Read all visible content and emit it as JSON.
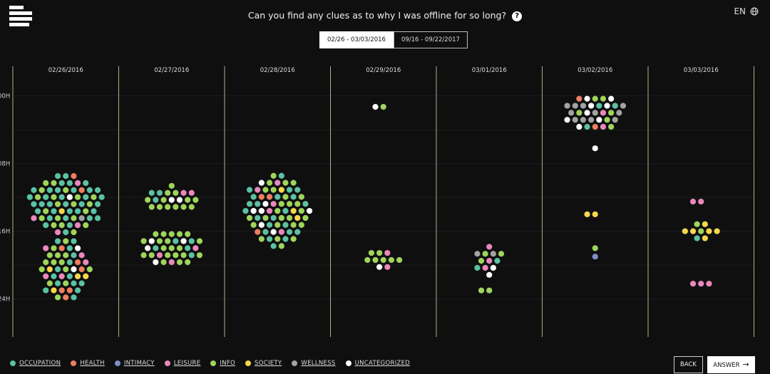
{
  "header": {
    "question": "Can you find any clues as to why I was offline for so long?",
    "help_icon": "?",
    "language": "EN"
  },
  "tabs": [
    {
      "label": "02/26 - 03/03/2016",
      "active": true
    },
    {
      "label": "09/16 - 09/22/2017",
      "active": false
    }
  ],
  "legend": [
    {
      "label": "OCCUPATION",
      "color": "#5bc2a4"
    },
    {
      "label": "HEALTH",
      "color": "#ee7f5f"
    },
    {
      "label": "INTIMACY",
      "color": "#7f8ec8"
    },
    {
      "label": "LEISURE",
      "color": "#ea88bd"
    },
    {
      "label": "INFO",
      "color": "#9fd55a"
    },
    {
      "label": "SOCIETY",
      "color": "#f7d64c"
    },
    {
      "label": "WELLNESS",
      "color": "#a3a3a3"
    },
    {
      "label": "UNCATEGORIZED",
      "color": "#ffffff"
    }
  ],
  "buttons": {
    "back": "BACK",
    "answer": "ANSWER"
  },
  "chart_data": {
    "type": "scatter",
    "x_categories": [
      "02/26/2016",
      "02/27/2016",
      "02/28/2016",
      "02/29/2016",
      "03/01/2016",
      "03/02/2016",
      "03/03/2016"
    ],
    "y_ticks": [
      "00H",
      "08H",
      "16H",
      "24H"
    ],
    "y_tick_values": [
      0,
      8,
      16,
      24
    ],
    "ylim": [
      -3.5,
      28.5
    ],
    "grid": true,
    "legend_position": "bottom-left",
    "clusters": [
      {
        "day": 0,
        "hour": 12.8,
        "cols": 9,
        "rows": 8,
        "counts": {
          "occupation": 34,
          "health": 2,
          "leisure": 4,
          "info": 20,
          "society": 1,
          "wellness": 1,
          "uncategorized": 1
        }
      },
      {
        "day": 0,
        "hour": 20.5,
        "cols": 6,
        "rows": 8,
        "counts": {
          "occupation": 14,
          "health": 6,
          "leisure": 5,
          "info": 14,
          "society": 4,
          "uncategorized": 2
        }
      },
      {
        "day": 1,
        "hour": 12.3,
        "cols": 6,
        "rows": 4,
        "counts": {
          "occupation": 3,
          "leisure": 2,
          "info": 13,
          "uncategorized": 2
        }
      },
      {
        "day": 1,
        "hour": 18.0,
        "cols": 7,
        "rows": 5,
        "counts": {
          "occupation": 5,
          "leisure": 3,
          "info": 21,
          "uncategorized": 4
        }
      },
      {
        "day": 2,
        "hour": 13.6,
        "cols": 8,
        "rows": 9,
        "counts": {
          "occupation": 22,
          "health": 3,
          "leisure": 5,
          "info": 26,
          "society": 3,
          "uncategorized": 7
        }
      },
      {
        "day": 3,
        "hour": 1.3,
        "cols": 2,
        "rows": 1,
        "counts": {
          "info": 1,
          "uncategorized": 1
        }
      },
      {
        "day": 3,
        "hour": 19.4,
        "cols": 4,
        "rows": 3,
        "counts": {
          "info": 7,
          "leisure": 2,
          "uncategorized": 1
        }
      },
      {
        "day": 4,
        "hour": 19.5,
        "cols": 3,
        "rows": 4,
        "counts": {
          "occupation": 2,
          "leisure": 3,
          "info": 3,
          "wellness": 2,
          "uncategorized": 2
        }
      },
      {
        "day": 4,
        "hour": 23.0,
        "cols": 2,
        "rows": 1,
        "counts": {
          "info": 2
        }
      },
      {
        "day": 5,
        "hour": 2.0,
        "cols": 7,
        "rows": 5,
        "counts": {
          "occupation": 3,
          "health": 2,
          "leisure": 2,
          "info": 6,
          "wellness": 11,
          "uncategorized": 8
        }
      },
      {
        "day": 5,
        "hour": 6.2,
        "cols": 1,
        "rows": 1,
        "counts": {
          "uncategorized": 1
        }
      },
      {
        "day": 5,
        "hour": 14.0,
        "cols": 2,
        "rows": 1,
        "counts": {
          "society": 2
        }
      },
      {
        "day": 5,
        "hour": 18.0,
        "cols": 1,
        "rows": 1,
        "counts": {
          "info": 1
        }
      },
      {
        "day": 5,
        "hour": 19.0,
        "cols": 1,
        "rows": 1,
        "counts": {
          "intimacy": 1
        }
      },
      {
        "day": 6,
        "hour": 12.5,
        "cols": 2,
        "rows": 1,
        "counts": {
          "leisure": 2
        }
      },
      {
        "day": 6,
        "hour": 16.0,
        "cols": 4,
        "rows": 3,
        "counts": {
          "occupation": 1,
          "info": 2,
          "society": 6
        }
      },
      {
        "day": 6,
        "hour": 22.2,
        "cols": 2,
        "rows": 2,
        "counts": {
          "leisure": 3
        }
      }
    ]
  }
}
